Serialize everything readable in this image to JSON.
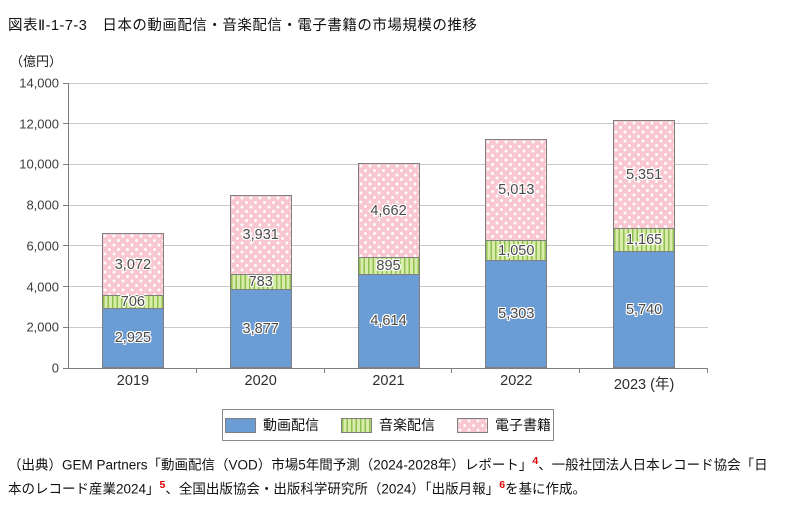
{
  "title": "図表Ⅱ-1-7-3　日本の動画配信・音楽配信・電子書籍の市場規模の推移",
  "y_axis": {
    "unit": "（億円）",
    "tick_labels": [
      "0",
      "2,000",
      "4,000",
      "6,000",
      "8,000",
      "10,000",
      "12,000",
      "14,000"
    ],
    "tick_values": [
      0,
      2000,
      4000,
      6000,
      8000,
      10000,
      12000,
      14000
    ]
  },
  "x_axis": {
    "tick_labels": [
      "2019",
      "2020",
      "2021",
      "2022",
      "2023 (年)"
    ]
  },
  "chart_data": {
    "type": "bar",
    "stacked": true,
    "title": "日本の動画配信・音楽配信・電子書籍の市場規模の推移",
    "ylabel": "（億円）",
    "ylim": [
      0,
      14000
    ],
    "grid": true,
    "legend_position": "bottom",
    "categories": [
      "2019",
      "2020",
      "2021",
      "2022",
      "2023"
    ],
    "series": [
      {
        "name": "動画配信",
        "color": "#6b9cd3",
        "pattern": "solid",
        "values": [
          2925,
          3877,
          4614,
          5303,
          5740
        ],
        "labels": [
          "2,925",
          "3,877",
          "4,614",
          "5,303",
          "5,740"
        ]
      },
      {
        "name": "音楽配信",
        "color": "#b9dc79",
        "pattern": "vertical-stripes",
        "values": [
          706,
          783,
          895,
          1050,
          1165
        ],
        "labels": [
          "706",
          "783",
          "895",
          "1,050",
          "1,165"
        ]
      },
      {
        "name": "電子書籍",
        "color": "#f8c7d0",
        "pattern": "polka-dots",
        "values": [
          3072,
          3931,
          4662,
          5013,
          5351
        ],
        "labels": [
          "3,072",
          "3,931",
          "4,662",
          "5,013",
          "5,351"
        ]
      }
    ]
  },
  "legend": {
    "items": [
      "動画配信",
      "音楽配信",
      "電子書籍"
    ]
  },
  "source": {
    "part1": "（出典）GEM Partners「動画配信（VOD）市場5年間予測（2024-2028年）レポート」",
    "ref1": "4",
    "part2": "、一般社団法人日本レコード協会「日本のレコード産業2024」",
    "ref2": "5",
    "part3": "、全国出版協会・出版科学研究所（2024）「出版月報」",
    "ref3": "6",
    "part4": "を基に作成。"
  }
}
